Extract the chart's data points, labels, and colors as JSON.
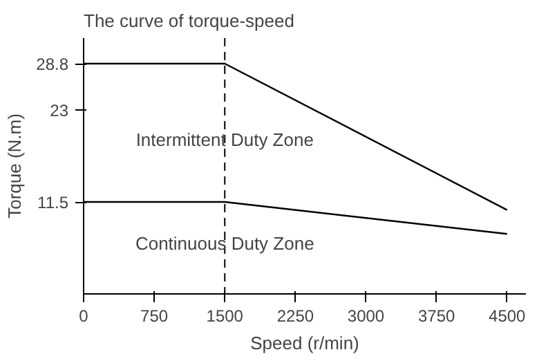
{
  "chart_data": {
    "type": "line",
    "title": "The curve of torque-speed",
    "xlabel": "Speed (r/min)",
    "ylabel": "Torque (N.m)",
    "x": [
      0,
      1500,
      4500
    ],
    "series": [
      {
        "color": "#000000",
        "values": [
          28.8,
          28.8,
          10.5
        ]
      },
      {
        "color": "#000000",
        "values": [
          11.5,
          11.5,
          7.5
        ]
      }
    ],
    "xlim": [
      0,
      4700
    ],
    "ylim": [
      0,
      32
    ],
    "xticks": [
      0,
      750,
      1500,
      2250,
      3000,
      3750,
      4500
    ],
    "yticks": [
      11.5,
      23,
      28.8
    ],
    "ref_lines": [
      {
        "axis": "x",
        "value": 1500,
        "label": null,
        "color": "#000000",
        "line_style": "dashed"
      }
    ],
    "annotations": [
      {
        "text": "Intermittent Duty Zone",
        "x": 1500,
        "y": 18
      },
      {
        "text": "Continuous Duty Zone",
        "x": 1500,
        "y": 5
      }
    ],
    "grid": false,
    "marker": "none",
    "line_style": "solid"
  }
}
